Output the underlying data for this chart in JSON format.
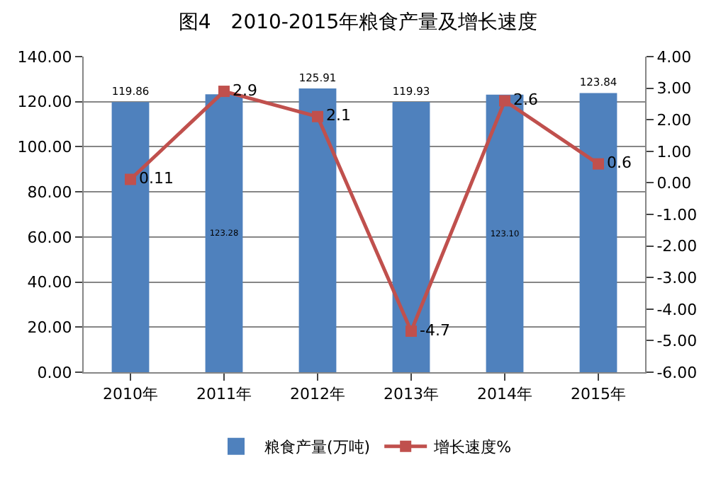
{
  "chart_data": {
    "type": "bar",
    "title": "图4　2010-2015年粮食产量及增长速度",
    "categories": [
      "2010年",
      "2011年",
      "2012年",
      "2013年",
      "2014年",
      "2015年"
    ],
    "series": [
      {
        "name": "粮食产量(万吨)",
        "color": "#4f81bd",
        "values": [
          119.86,
          123.28,
          125.91,
          119.93,
          123.1,
          123.84
        ],
        "value_labels": [
          "119.86",
          "123.28",
          "125.91",
          "119.93",
          "123.10",
          "123.84"
        ]
      },
      {
        "name": "增长速度%",
        "type": "line",
        "axis": "y2",
        "color": "#c0504d",
        "marker": "square",
        "values": [
          0.11,
          2.9,
          2.1,
          -4.7,
          2.6,
          0.6
        ],
        "value_labels": [
          "0.11",
          "2.9",
          "2.1",
          "-4.7",
          "2.6",
          "0.6"
        ]
      }
    ],
    "ylim": [
      0,
      140
    ],
    "yticks": [
      {
        "value": 0,
        "label": "0.00"
      },
      {
        "value": 20,
        "label": "20.00"
      },
      {
        "value": 40,
        "label": "40.00"
      },
      {
        "value": 60,
        "label": "60.00"
      },
      {
        "value": 80,
        "label": "80.00"
      },
      {
        "value": 100,
        "label": "100.00"
      },
      {
        "value": 120,
        "label": "120.00"
      },
      {
        "value": 140,
        "label": "140.00"
      }
    ],
    "y2lim": [
      -6,
      4
    ],
    "y2ticks": [
      {
        "value": -6,
        "label": "-6.00"
      },
      {
        "value": -5,
        "label": "-5.00"
      },
      {
        "value": -4,
        "label": "-4.00"
      },
      {
        "value": -3,
        "label": "-3.00"
      },
      {
        "value": -2,
        "label": "-2.00"
      },
      {
        "value": -1,
        "label": "-1.00"
      },
      {
        "value": 0,
        "label": "0.00"
      },
      {
        "value": 1,
        "label": "1.00"
      },
      {
        "value": 2,
        "label": "2.00"
      },
      {
        "value": 3,
        "label": "3.00"
      },
      {
        "value": 4,
        "label": "4.00"
      }
    ],
    "grid": "y",
    "legend": "bottom"
  }
}
